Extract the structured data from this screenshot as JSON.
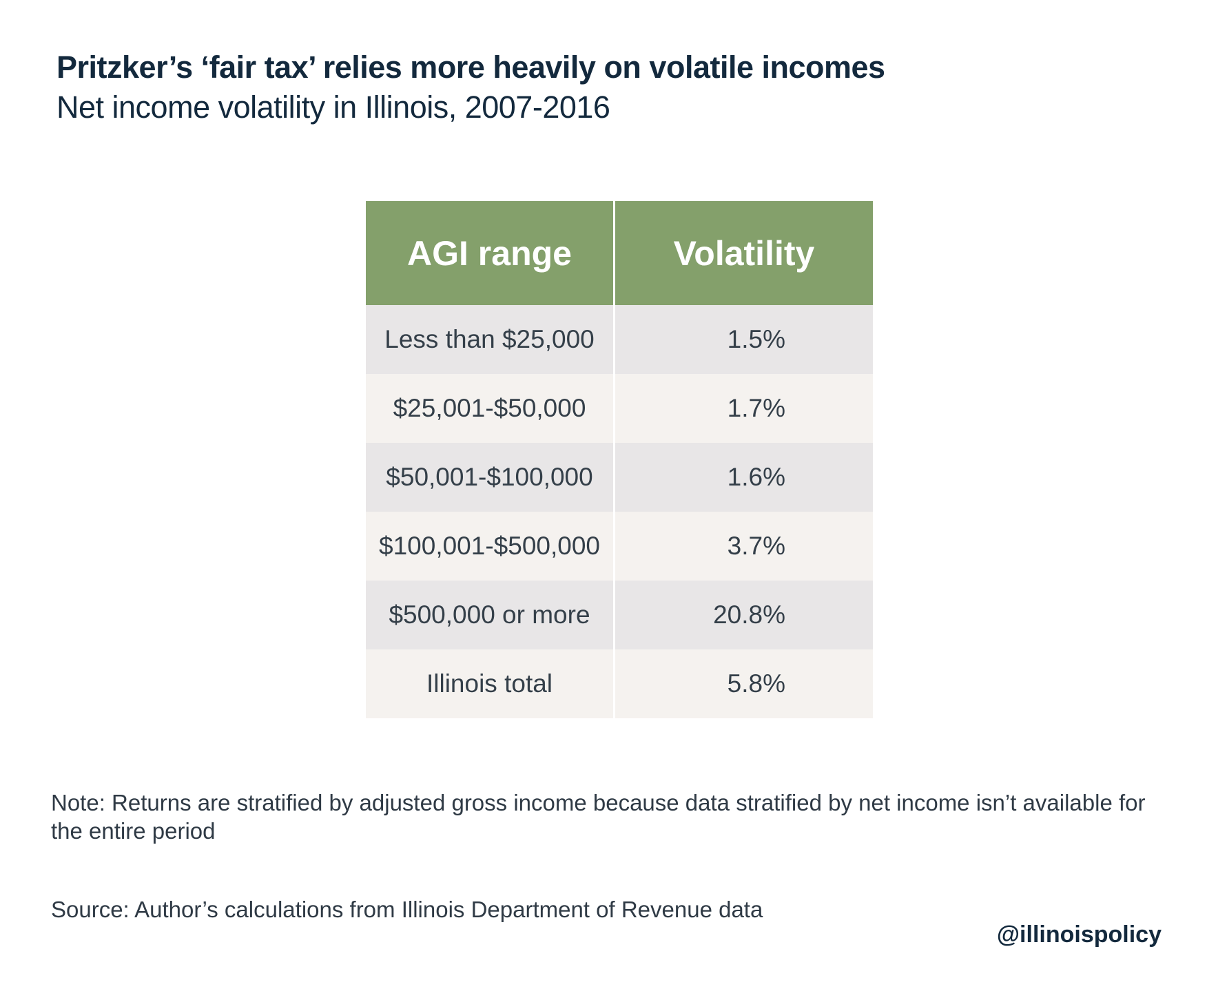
{
  "title": "Pritzker’s ‘fair tax’ relies more heavily on volatile incomes",
  "subtitle": "Net income volatility in Illinois, 2007-2016",
  "note": "Note: Returns are stratified by adjusted gross income because data stratified by net income isn’t available for the entire period",
  "source": "Source: Author’s calculations from Illinois Department of Revenue data",
  "handle": "@illinoispolicy",
  "colors": {
    "header_bg": "#84a06b",
    "row_odd_bg": "#e8e6e7",
    "row_even_bg": "#f5f2ef",
    "title_color": "#13293d"
  },
  "chart_data": {
    "type": "table",
    "columns": [
      "AGI range",
      "Volatility"
    ],
    "rows": [
      [
        "Less than $25,000",
        "1.5%"
      ],
      [
        "$25,001-$50,000",
        "1.7%"
      ],
      [
        "$50,001-$100,000",
        "1.6%"
      ],
      [
        "$100,001-$500,000",
        "3.7%"
      ],
      [
        "$500,000 or more",
        "20.8%"
      ],
      [
        "Illinois total",
        "5.8%"
      ]
    ],
    "values": [
      1.5,
      1.7,
      1.6,
      3.7,
      20.8,
      5.8
    ]
  }
}
